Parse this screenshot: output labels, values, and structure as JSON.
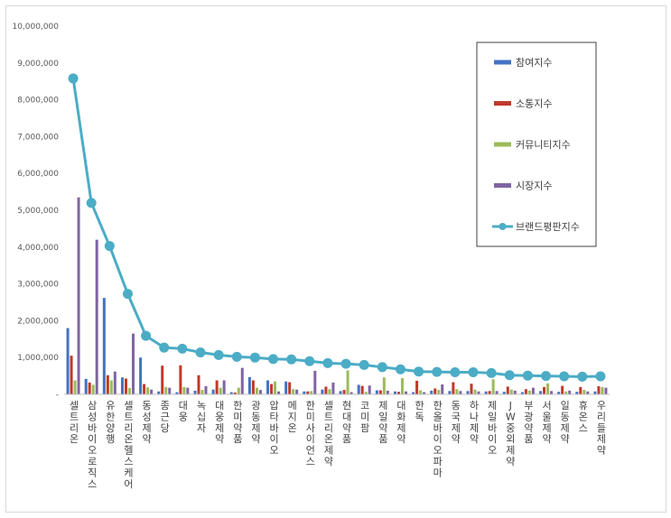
{
  "chart_data": {
    "type": "bar",
    "categories": [
      "셀트리온",
      "삼성바이오로직스",
      "유한양행",
      "셀트리온헬스케어",
      "동성제약",
      "종근당",
      "대웅",
      "녹십자",
      "대웅제약",
      "한미약품",
      "광동제약",
      "압타바이오",
      "메지온",
      "한미사이언스",
      "셀트리온제약",
      "현대약품",
      "코미팜",
      "제일약품",
      "대화제약",
      "한독",
      "한올바이오파마",
      "동국제약",
      "하나제약",
      "제일바이오",
      "JW중외제약",
      "부광약품",
      "서울제약",
      "일동제약",
      "휴온스",
      "우리들제약"
    ],
    "series": [
      {
        "name": "참여지수",
        "color": "#4472C4",
        "values": [
          1800000,
          420000,
          2620000,
          460000,
          1000000,
          80000,
          60000,
          100000,
          130000,
          60000,
          470000,
          380000,
          350000,
          80000,
          130000,
          90000,
          260000,
          110000,
          80000,
          60000,
          100000,
          90000,
          90000,
          80000,
          70000,
          60000,
          90000,
          70000,
          70000,
          80000
        ]
      },
      {
        "name": "소통지수",
        "color": "#C0392B",
        "values": [
          1050000,
          320000,
          520000,
          430000,
          280000,
          780000,
          790000,
          520000,
          380000,
          50000,
          380000,
          280000,
          330000,
          80000,
          210000,
          120000,
          230000,
          110000,
          70000,
          370000,
          160000,
          330000,
          290000,
          90000,
          210000,
          140000,
          200000,
          230000,
          200000,
          220000
        ]
      },
      {
        "name": "커뮤니티지수",
        "color": "#9BBB59",
        "values": [
          380000,
          260000,
          380000,
          170000,
          190000,
          200000,
          200000,
          120000,
          180000,
          180000,
          180000,
          350000,
          140000,
          90000,
          140000,
          650000,
          70000,
          460000,
          440000,
          110000,
          120000,
          140000,
          130000,
          410000,
          130000,
          100000,
          300000,
          80000,
          120000,
          200000
        ]
      },
      {
        "name": "시장지수",
        "color": "#8064A2",
        "values": [
          5350000,
          4200000,
          620000,
          1650000,
          130000,
          180000,
          180000,
          220000,
          380000,
          720000,
          120000,
          80000,
          130000,
          640000,
          320000,
          60000,
          240000,
          100000,
          80000,
          60000,
          270000,
          90000,
          80000,
          90000,
          100000,
          180000,
          90000,
          100000,
          80000,
          180000
        ]
      }
    ],
    "line_series": {
      "name": "브랜드평판지수",
      "color": "#4BACC6",
      "values": [
        8580000,
        5200000,
        4030000,
        2730000,
        1590000,
        1270000,
        1240000,
        1140000,
        1070000,
        1020000,
        1000000,
        960000,
        950000,
        900000,
        850000,
        830000,
        800000,
        740000,
        680000,
        620000,
        610000,
        600000,
        600000,
        580000,
        520000,
        510000,
        500000,
        490000,
        480000,
        490000
      ]
    },
    "y_ticks": [
      "-",
      "1,000,000",
      "2,000,000",
      "3,000,000",
      "4,000,000",
      "5,000,000",
      "6,000,000",
      "7,000,000",
      "8,000,000",
      "9,000,000",
      "10,000,000"
    ],
    "ylim": [
      0,
      10000000
    ],
    "legend_position": "right",
    "grid": false
  }
}
